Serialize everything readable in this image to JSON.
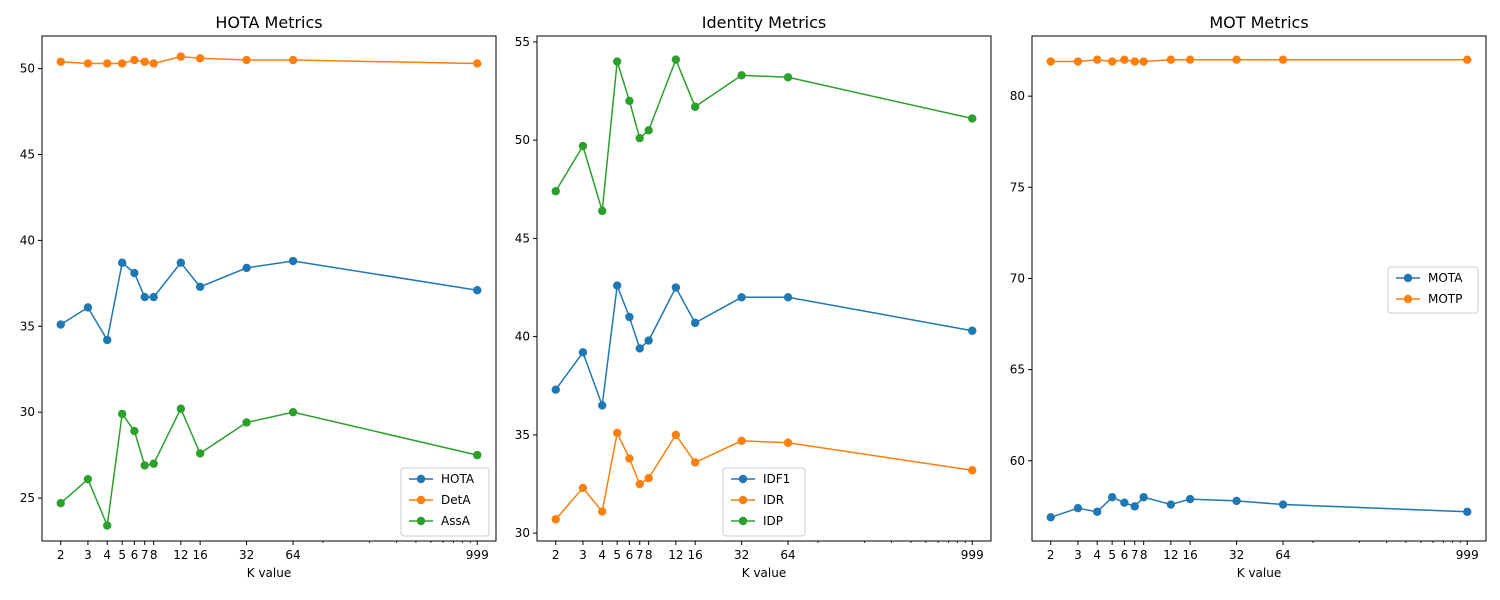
{
  "chart_data": [
    {
      "type": "line",
      "title": "HOTA Metrics",
      "xlabel": "K value",
      "ylabel": "",
      "xscale": "log",
      "x": [
        2,
        3,
        4,
        5,
        6,
        7,
        8,
        12,
        16,
        32,
        64,
        999
      ],
      "xticks": [
        2,
        3,
        4,
        5,
        6,
        7,
        8,
        12,
        16,
        32,
        64,
        999
      ],
      "xtick_labels": [
        "2",
        "3",
        "4",
        "5",
        "6",
        "7",
        "8",
        "12",
        "16",
        "32",
        "64",
        "999"
      ],
      "ylim": [
        22.5,
        51.9
      ],
      "yticks": [
        25,
        30,
        35,
        40,
        45,
        50
      ],
      "legend": "lower-right",
      "series": [
        {
          "name": "HOTA",
          "color": "#1f77b4",
          "values": [
            35.1,
            36.1,
            34.2,
            38.7,
            38.1,
            36.7,
            36.7,
            38.7,
            37.3,
            38.4,
            38.8,
            37.1
          ]
        },
        {
          "name": "DetA",
          "color": "#ff7f0e",
          "values": [
            50.4,
            50.3,
            50.3,
            50.3,
            50.5,
            50.4,
            50.3,
            50.7,
            50.6,
            50.5,
            50.5,
            50.3
          ]
        },
        {
          "name": "AssA",
          "color": "#2ca02c",
          "values": [
            24.7,
            26.1,
            23.4,
            29.9,
            28.9,
            26.9,
            27.0,
            30.2,
            27.6,
            29.4,
            30.0,
            27.5
          ]
        }
      ]
    },
    {
      "type": "line",
      "title": "Identity Metrics",
      "xlabel": "K value",
      "ylabel": "",
      "xscale": "log",
      "x": [
        2,
        3,
        4,
        5,
        6,
        7,
        8,
        12,
        16,
        32,
        64,
        999
      ],
      "xticks": [
        2,
        3,
        4,
        5,
        6,
        7,
        8,
        12,
        16,
        32,
        64,
        999
      ],
      "xtick_labels": [
        "2",
        "3",
        "4",
        "5",
        "6",
        "7",
        "8",
        "12",
        "16",
        "32",
        "64",
        "999"
      ],
      "ylim": [
        29.6,
        55.3
      ],
      "yticks": [
        30,
        35,
        40,
        45,
        50,
        55
      ],
      "legend": "lower-center",
      "series": [
        {
          "name": "IDF1",
          "color": "#1f77b4",
          "values": [
            37.3,
            39.2,
            36.5,
            42.6,
            41.0,
            39.4,
            39.8,
            42.5,
            40.7,
            42.0,
            42.0,
            40.3
          ]
        },
        {
          "name": "IDR",
          "color": "#ff7f0e",
          "values": [
            30.7,
            32.3,
            31.1,
            35.1,
            33.8,
            32.5,
            32.8,
            35.0,
            33.6,
            34.7,
            34.6,
            33.2
          ]
        },
        {
          "name": "IDP",
          "color": "#2ca02c",
          "values": [
            47.4,
            49.7,
            46.4,
            54.0,
            52.0,
            50.1,
            50.5,
            54.1,
            51.7,
            53.3,
            53.2,
            51.1
          ]
        }
      ]
    },
    {
      "type": "line",
      "title": "MOT Metrics",
      "xlabel": "K value",
      "ylabel": "",
      "xscale": "log",
      "x": [
        2,
        3,
        4,
        5,
        6,
        7,
        8,
        12,
        16,
        32,
        64,
        999
      ],
      "xticks": [
        2,
        3,
        4,
        5,
        6,
        7,
        8,
        12,
        16,
        32,
        64,
        999
      ],
      "xtick_labels": [
        "2",
        "3",
        "4",
        "5",
        "6",
        "7",
        "8",
        "12",
        "16",
        "32",
        "64",
        "999"
      ],
      "ylim": [
        55.6,
        83.3
      ],
      "yticks": [
        60,
        65,
        70,
        75,
        80
      ],
      "legend": "center-right",
      "series": [
        {
          "name": "MOTA",
          "color": "#1f77b4",
          "values": [
            56.9,
            57.4,
            57.2,
            58.0,
            57.7,
            57.5,
            58.0,
            57.6,
            57.9,
            57.8,
            57.6,
            57.2
          ]
        },
        {
          "name": "MOTP",
          "color": "#ff7f0e",
          "values": [
            81.9,
            81.9,
            82.0,
            81.9,
            82.0,
            81.9,
            81.9,
            82.0,
            82.0,
            82.0,
            82.0,
            82.0
          ]
        }
      ]
    }
  ]
}
